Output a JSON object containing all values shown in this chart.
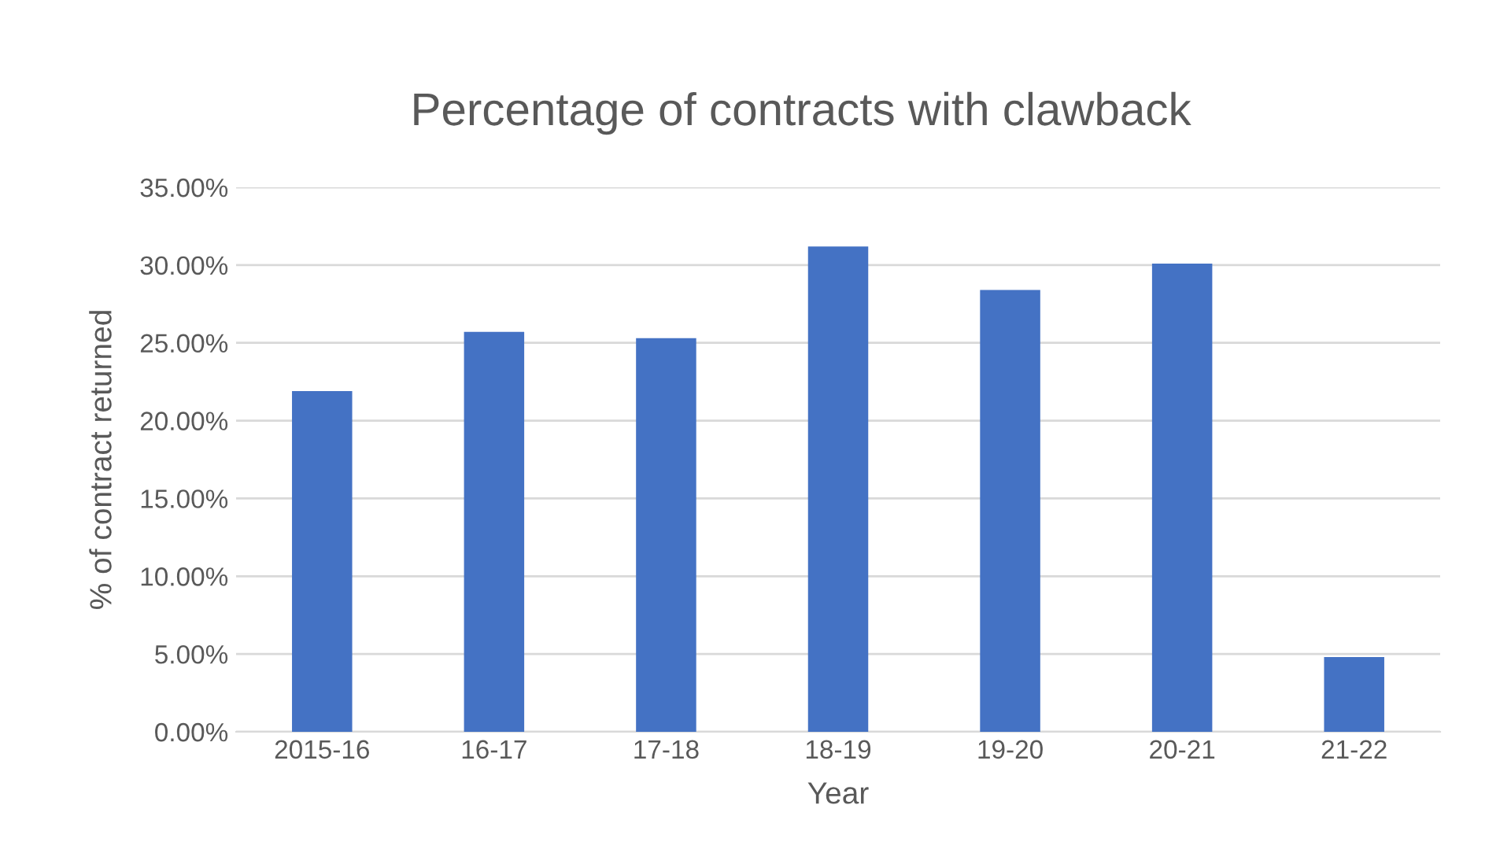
{
  "chart_data": {
    "type": "bar",
    "title": "Percentage of contracts with clawback",
    "xlabel": "Year",
    "ylabel": "% of contract returned",
    "categories": [
      "2015-16",
      "16-17",
      "17-18",
      "18-19",
      "19-20",
      "20-21",
      "21-22"
    ],
    "values": [
      21.9,
      25.7,
      25.3,
      31.2,
      28.4,
      30.1,
      4.8
    ],
    "color": "#4472c4",
    "ylim": [
      0,
      35
    ],
    "yticks": [
      {
        "value": 0,
        "label": "0.00%"
      },
      {
        "value": 5,
        "label": "5.00%"
      },
      {
        "value": 10,
        "label": "10.00%"
      },
      {
        "value": 15,
        "label": "15.00%"
      },
      {
        "value": 20,
        "label": "20.00%"
      },
      {
        "value": 25,
        "label": "25.00%"
      },
      {
        "value": 30,
        "label": "30.00%"
      },
      {
        "value": 35,
        "label": "35.00%"
      }
    ],
    "grid": "y",
    "legend": false
  }
}
